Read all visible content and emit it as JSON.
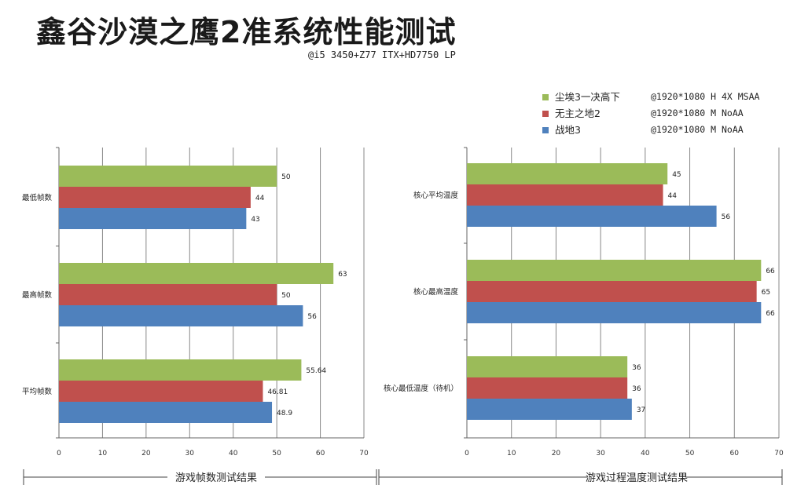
{
  "title": "鑫谷沙漠之鹰2准系统性能测试",
  "subtitle": "@i5 3450+Z77 ITX+HD7750 LP",
  "legend": [
    {
      "name": "尘埃3一决高下",
      "note": "@1920*1080 H 4X MSAA",
      "color": "#9bbb59"
    },
    {
      "name": "无主之地2",
      "note": "@1920*1080 M NoAA",
      "color": "#c0504d"
    },
    {
      "name": "战地3",
      "note": "@1920*1080 M NoAA",
      "color": "#4f81bd"
    }
  ],
  "colors": {
    "series1": "#9bbb59",
    "series2": "#c0504d",
    "series3": "#4f81bd",
    "grid": "#888888"
  },
  "chart_data": [
    {
      "type": "bar",
      "orientation": "horizontal",
      "categories": [
        "最低帧数",
        "最高帧数",
        "平均帧数"
      ],
      "series": [
        {
          "name": "尘埃3一决高下",
          "values": [
            50,
            63,
            55.64
          ],
          "labels": [
            "50",
            "63",
            "55.64"
          ]
        },
        {
          "name": "无主之地2",
          "values": [
            44,
            50,
            46.81
          ],
          "labels": [
            "44",
            "50",
            "46.81"
          ]
        },
        {
          "name": "战地3",
          "values": [
            43,
            56,
            48.9
          ],
          "labels": [
            "43",
            "56",
            "48.9"
          ]
        }
      ],
      "xlim": [
        0,
        70
      ],
      "ticks": [
        0,
        10,
        20,
        30,
        40,
        50,
        60,
        70
      ],
      "grid": true,
      "caption": "游戏帧数测试结果"
    },
    {
      "type": "bar",
      "orientation": "horizontal",
      "categories": [
        "核心平均温度",
        "核心最高温度",
        "核心最低温度（待机）"
      ],
      "series": [
        {
          "name": "尘埃3一决高下",
          "values": [
            45,
            66,
            36
          ],
          "labels": [
            "45",
            "66",
            "36"
          ]
        },
        {
          "name": "无主之地2",
          "values": [
            44,
            65,
            36
          ],
          "labels": [
            "44",
            "65",
            "36"
          ]
        },
        {
          "name": "战地3",
          "values": [
            56,
            66,
            37
          ],
          "labels": [
            "56",
            "66",
            "37"
          ]
        }
      ],
      "xlim": [
        0,
        70
      ],
      "ticks": [
        0,
        10,
        20,
        30,
        40,
        50,
        60,
        70
      ],
      "grid": true,
      "caption": "游戏过程温度测试结果"
    }
  ]
}
